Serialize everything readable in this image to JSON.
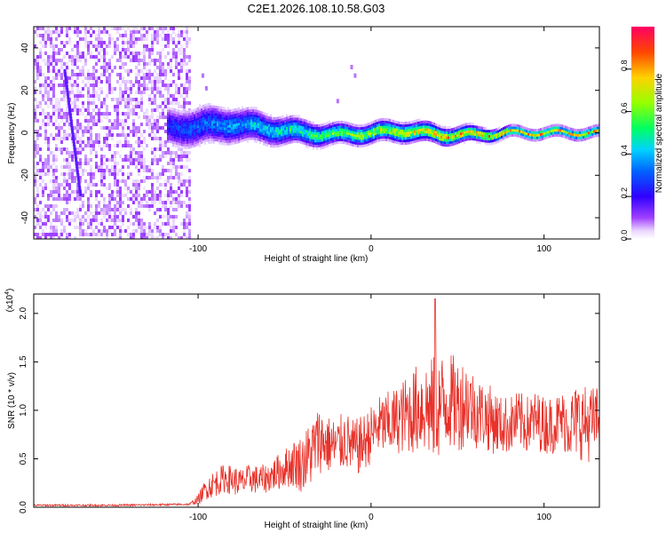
{
  "title": "C2E1.2026.108.10.58.G03",
  "chart_data": [
    {
      "type": "heatmap",
      "name": "spectrogram",
      "xlabel": "Height of straight line (km)",
      "ylabel": "Frequency (Hz)",
      "xlim": [
        -195,
        132
      ],
      "ylim": [
        -50,
        50
      ],
      "xticks": [
        -100,
        0,
        100
      ],
      "xtick_labels": [
        "-100",
        "0",
        "100"
      ],
      "yticks": [
        -40,
        -20,
        0,
        20,
        40
      ],
      "ytick_labels": [
        "-40",
        "-20",
        "0",
        "20",
        "40"
      ],
      "noise_region_km": [
        -195,
        -105
      ],
      "signal_band": {
        "x": [
          -118,
          -100,
          -80,
          -60,
          -40,
          -20,
          0,
          20,
          40,
          60,
          80,
          100,
          132
        ],
        "center_hz": [
          2,
          3,
          4,
          2,
          0,
          -1,
          0,
          1,
          -1,
          -1,
          0,
          0,
          0
        ],
        "halfwidth_hz": [
          8,
          8,
          7,
          6,
          5,
          4,
          4,
          4,
          3.5,
          3,
          2,
          2,
          2
        ]
      },
      "colorbar": {
        "label": "Normalized spectral amplitude",
        "range": [
          0.0,
          1.0
        ],
        "ticks": [
          0.0,
          0.2,
          0.4,
          0.6,
          0.8
        ],
        "tick_labels": [
          "0.0",
          "0.2",
          "0.4",
          "0.6",
          "0.8"
        ],
        "colors": [
          "#ffffff",
          "#d9b3ff",
          "#7f00ff",
          "#0000ff",
          "#00c8ff",
          "#00ff40",
          "#c8ff00",
          "#ffd200",
          "#ff5000",
          "#ff0050"
        ]
      }
    },
    {
      "type": "line",
      "name": "snr",
      "xlabel": "Height of straight line (km)",
      "ylabel": "SNR (10 * v/v)",
      "scale_label": "(x10",
      "scale_exponent": "4",
      "xlim": [
        -195,
        132
      ],
      "ylim": [
        0,
        2.2
      ],
      "xticks": [
        -100,
        0,
        100
      ],
      "xtick_labels": [
        "-100",
        "0",
        "100"
      ],
      "yticks": [
        0.0,
        0.5,
        1.0,
        1.5,
        2.0
      ],
      "ytick_labels": [
        "0.0",
        "0.5",
        "1.0",
        "1.5",
        "2.0"
      ],
      "color": "#e8322a",
      "x": [
        -195,
        -150,
        -105,
        -100,
        -95,
        -90,
        -85,
        -80,
        -75,
        -70,
        -65,
        -60,
        -55,
        -50,
        -45,
        -40,
        -35,
        -30,
        -25,
        -20,
        -15,
        -10,
        -5,
        0,
        5,
        10,
        15,
        20,
        25,
        30,
        35,
        40,
        45,
        50,
        55,
        60,
        65,
        70,
        75,
        80,
        85,
        90,
        95,
        100,
        105,
        110,
        115,
        120,
        125,
        130
      ],
      "y": [
        0.02,
        0.02,
        0.03,
        0.08,
        0.2,
        0.25,
        0.3,
        0.28,
        0.25,
        0.3,
        0.28,
        0.3,
        0.35,
        0.4,
        0.45,
        0.45,
        0.55,
        0.7,
        0.65,
        0.62,
        0.7,
        0.6,
        0.65,
        0.75,
        0.85,
        0.85,
        0.9,
        0.95,
        1.0,
        1.05,
        1.0,
        1.05,
        1.1,
        1.05,
        1.1,
        1.0,
        0.95,
        0.9,
        0.85,
        0.85,
        0.9,
        0.85,
        0.9,
        0.85,
        0.85,
        0.9,
        0.85,
        0.9,
        0.85,
        0.9
      ],
      "spread": [
        0.01,
        0.01,
        0.01,
        0.05,
        0.12,
        0.14,
        0.15,
        0.15,
        0.15,
        0.15,
        0.15,
        0.15,
        0.18,
        0.2,
        0.25,
        0.3,
        0.35,
        0.35,
        0.3,
        0.3,
        0.3,
        0.3,
        0.3,
        0.3,
        0.3,
        0.35,
        0.35,
        0.4,
        0.45,
        0.5,
        0.55,
        0.55,
        0.5,
        0.5,
        0.45,
        0.4,
        0.35,
        0.35,
        0.3,
        0.3,
        0.3,
        0.3,
        0.3,
        0.3,
        0.3,
        0.3,
        0.35,
        0.4,
        0.4,
        0.35
      ],
      "peak": {
        "x": 37,
        "y": 2.15
      }
    }
  ]
}
